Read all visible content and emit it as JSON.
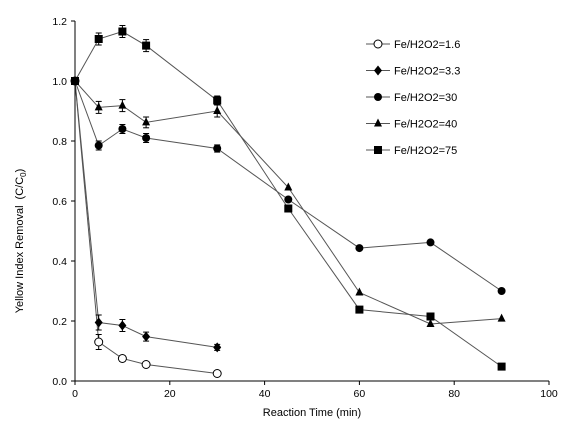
{
  "chart_data": {
    "type": "line",
    "xlabel": "Reaction Time (min)",
    "ylabel": "Yellow Index Removal",
    "ylabel_unit": "(C/C",
    "ylabel_sub": "0",
    "ylabel_close": ")",
    "xlim": [
      0,
      100
    ],
    "ylim": [
      0,
      1.2
    ],
    "xticks": [
      0,
      20,
      40,
      60,
      80,
      100
    ],
    "yticks": [
      0.0,
      0.2,
      0.4,
      0.6,
      0.8,
      1.0,
      1.2
    ],
    "ytick_labels": [
      "0.0",
      "0.2",
      "0.4",
      "0.6",
      "0.8",
      "1.0",
      "1.2"
    ],
    "legend_position": "top-right",
    "series": [
      {
        "name": "Fe/H2O2=1.6",
        "marker": "circle-open",
        "x": [
          0,
          5,
          10,
          15,
          30
        ],
        "y": [
          1.0,
          0.13,
          0.075,
          0.055,
          0.025
        ],
        "err": [
          0,
          0.025,
          0.01,
          0.008,
          0.005
        ]
      },
      {
        "name": "Fe/H2O2=3.3",
        "marker": "diamond",
        "x": [
          0,
          5,
          10,
          15,
          30
        ],
        "y": [
          1.0,
          0.195,
          0.185,
          0.148,
          0.112
        ],
        "err": [
          0,
          0.025,
          0.02,
          0.015,
          0.01
        ]
      },
      {
        "name": "Fe/H2O2=30",
        "marker": "circle",
        "x": [
          0,
          5,
          10,
          15,
          30,
          45,
          60,
          75,
          90
        ],
        "y": [
          1.0,
          0.785,
          0.84,
          0.81,
          0.775,
          0.605,
          0.443,
          0.462,
          0.3
        ],
        "err": [
          0,
          0.015,
          0.015,
          0.015,
          0.012,
          0,
          0,
          0,
          0
        ]
      },
      {
        "name": "Fe/H2O2=40",
        "marker": "triangle",
        "x": [
          0,
          5,
          10,
          15,
          30,
          45,
          60,
          75,
          90
        ],
        "y": [
          1.0,
          0.912,
          0.918,
          0.862,
          0.9,
          0.645,
          0.295,
          0.19,
          0.208
        ],
        "err": [
          0,
          0.02,
          0.02,
          0.018,
          0.02,
          0,
          0,
          0,
          0
        ]
      },
      {
        "name": "Fe/H2O2=75",
        "marker": "square",
        "x": [
          0,
          5,
          10,
          15,
          30,
          45,
          60,
          75,
          90
        ],
        "y": [
          1.0,
          1.14,
          1.165,
          1.118,
          0.935,
          0.575,
          0.238,
          0.215,
          0.048
        ],
        "err": [
          0,
          0.02,
          0.02,
          0.02,
          0.015,
          0,
          0,
          0,
          0
        ]
      }
    ]
  }
}
